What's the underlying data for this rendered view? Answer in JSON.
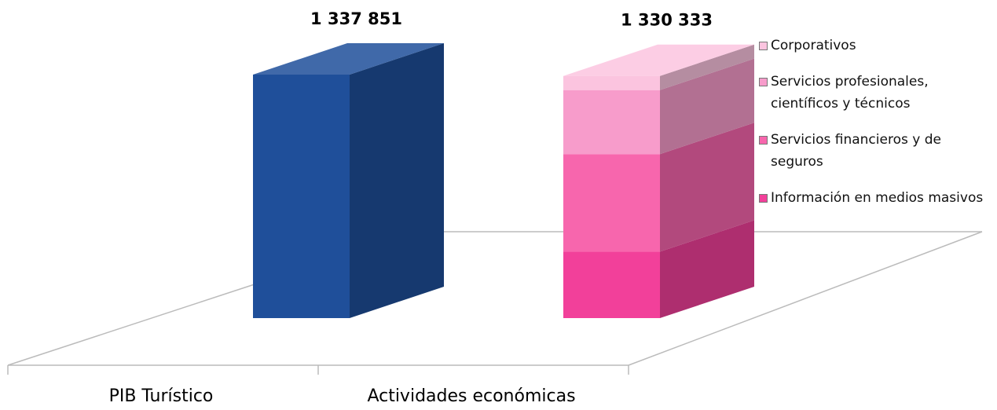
{
  "chart_data": {
    "type": "bar3d",
    "categories": [
      "PIB Turístico",
      "Actividades económicas"
    ],
    "values": [
      1337851,
      1330333
    ],
    "value_labels": [
      "1 337 851",
      "1 330 333"
    ],
    "color": "#1f4f9a",
    "series": [
      {
        "name": "Información en medios masivos",
        "color": "#f2409a",
        "values": [
          null,
          365000
        ]
      },
      {
        "name": "Servicios financieros y de seguros",
        "color": "#f766ad",
        "values": [
          null,
          536000
        ]
      },
      {
        "name": "Servicios profesionales, científicos y técnicos",
        "color": "#f79ccb",
        "values": [
          null,
          352000
        ]
      },
      {
        "name": "Corporativos",
        "color": "#fbc4df",
        "values": [
          null,
          77333
        ]
      }
    ]
  }
}
